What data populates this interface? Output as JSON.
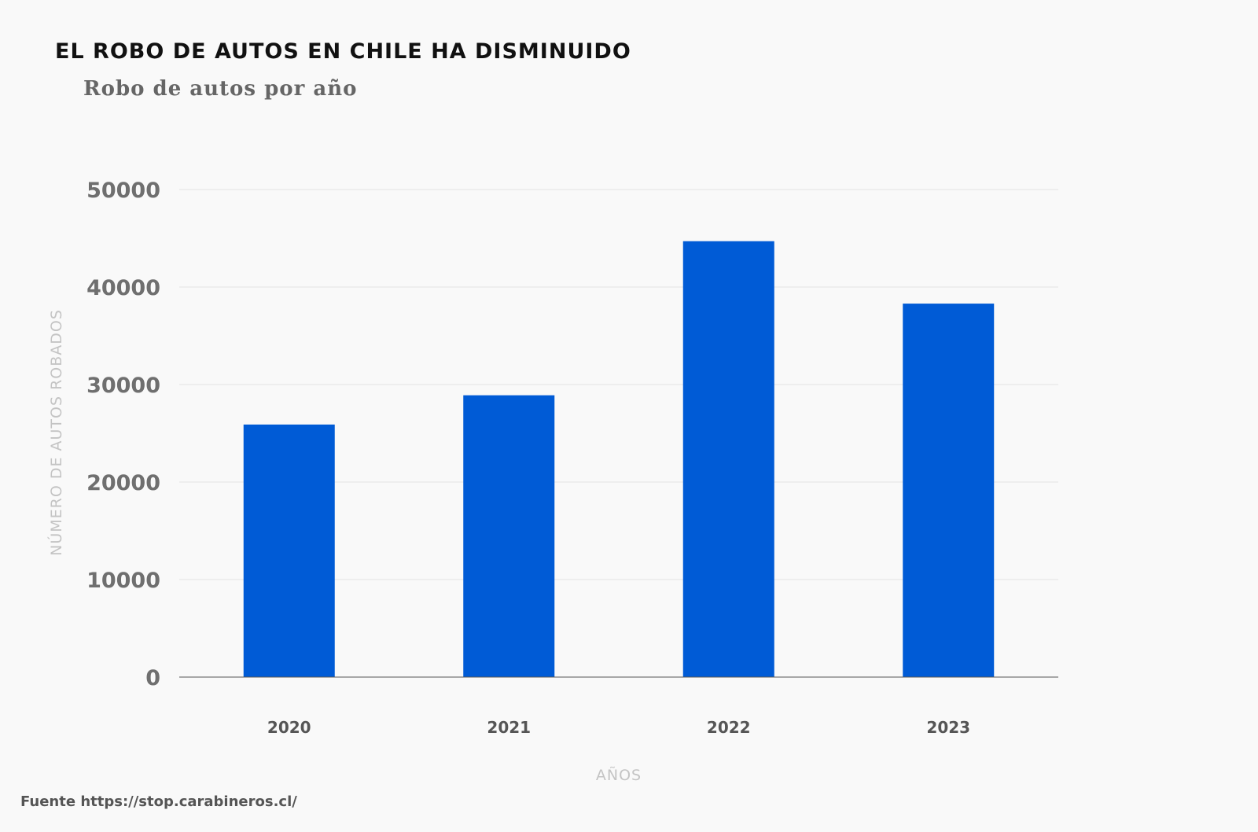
{
  "title": "EL ROBO DE AUTOS EN CHILE HA DISMINUIDO",
  "subtitle": "Robo de autos por año",
  "source": "Fuente https://stop.carabineros.cl/",
  "chart_data": {
    "type": "bar",
    "categories": [
      "2020",
      "2021",
      "2022",
      "2023"
    ],
    "values": [
      25900,
      28900,
      44700,
      38300
    ],
    "xlabel": "AÑOS",
    "ylabel": "NÚMERO DE AUTOS ROBADOS",
    "yticks": [
      "0",
      "10000",
      "20000",
      "30000",
      "40000",
      "50000"
    ],
    "ylim": [
      0,
      50000
    ],
    "grid": true,
    "legend": "none",
    "bar_color": "#005bd6",
    "gridline_color": "#e2e2e2",
    "baseline_color": "#555555"
  }
}
